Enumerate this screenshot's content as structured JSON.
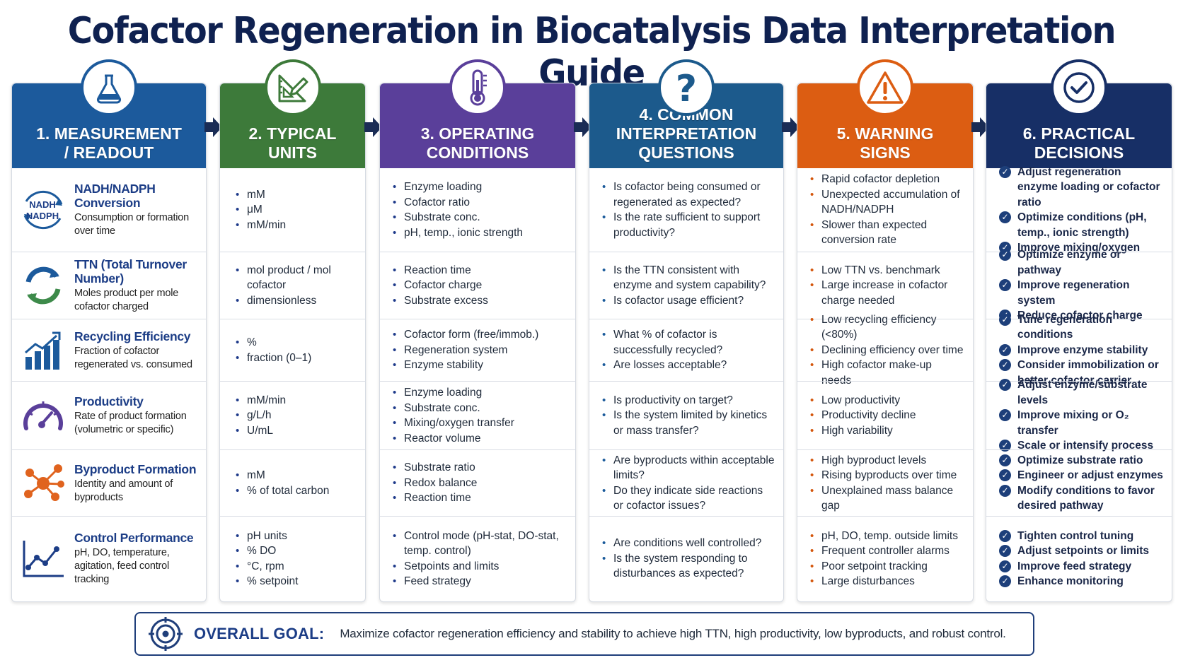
{
  "title": "Cofactor Regeneration in Biocatalysis Data Interpretation Guide",
  "colors": {
    "measurement": "#1c5a9c",
    "units": "#3d7a3a",
    "operating": "#5a3f9a",
    "questions": "#1c5a8c",
    "warning": "#dc5d12",
    "decisions": "#172f66"
  },
  "columns": [
    {
      "key": "measurement",
      "header": "1. MEASUREMENT\n/ READOUT",
      "icon": "flask-icon",
      "rows": [
        {
          "title": "NADH/NADPH Conversion",
          "desc": "Consumption or formation over time",
          "icon": "nadh-cycle-icon",
          "icon_text": "NADH\nNADPH"
        },
        {
          "title": "TTN (Total Turnover Number)",
          "desc": "Moles product per mole cofactor charged",
          "icon": "recycle-arrows-icon"
        },
        {
          "title": "Recycling Efficiency",
          "desc": "Fraction of cofactor regenerated vs. consumed",
          "icon": "bar-growth-icon"
        },
        {
          "title": "Productivity",
          "desc": "Rate of product formation (volumetric or specific)",
          "icon": "gauge-icon"
        },
        {
          "title": "Byproduct Formation",
          "desc": "Identity and amount of byproducts",
          "icon": "molecule-icon"
        },
        {
          "title": "Control Performance",
          "desc": "pH, DO, temperature, agitation, feed control tracking",
          "icon": "line-chart-icon"
        }
      ]
    },
    {
      "key": "units",
      "header": "2. TYPICAL\nUNITS",
      "icon": "ruler-pencil-icon",
      "rows": [
        [
          "mM",
          "μM",
          "mM/min"
        ],
        [
          "mol product / mol cofactor",
          "dimensionless"
        ],
        [
          "%",
          "fraction (0–1)"
        ],
        [
          "mM/min",
          "g/L/h",
          "U/mL"
        ],
        [
          "mM",
          "% of total carbon"
        ],
        [
          "pH units",
          "% DO",
          "°C, rpm",
          "% setpoint"
        ]
      ]
    },
    {
      "key": "operating",
      "header": "3. OPERATING\nCONDITIONS",
      "icon": "thermometer-icon",
      "rows": [
        [
          "Enzyme loading",
          "Cofactor ratio",
          "Substrate conc.",
          "pH, temp., ionic strength"
        ],
        [
          "Reaction time",
          "Cofactor charge",
          "Substrate excess"
        ],
        [
          "Cofactor form (free/immob.)",
          "Regeneration system",
          "Enzyme stability"
        ],
        [
          "Enzyme loading",
          "Substrate conc.",
          "Mixing/oxygen transfer",
          "Reactor volume"
        ],
        [
          "Substrate ratio",
          "Redox balance",
          "Reaction time"
        ],
        [
          "Control mode (pH-stat, DO-stat, temp. control)",
          "Setpoints and limits",
          "Feed strategy"
        ]
      ]
    },
    {
      "key": "questions",
      "header": "4. COMMON\nINTERPRETATION\nQUESTIONS",
      "icon": "question-mark-icon",
      "rows": [
        [
          "Is cofactor being consumed or regenerated as expected?",
          "Is the rate sufficient to support productivity?"
        ],
        [
          "Is the TTN consistent with enzyme and system capability?",
          "Is cofactor usage efficient?"
        ],
        [
          "What % of cofactor is successfully recycled?",
          "Are losses acceptable?"
        ],
        [
          "Is productivity on target?",
          "Is the system limited by kinetics or mass transfer?"
        ],
        [
          "Are byproducts within acceptable limits?",
          "Do they indicate side reactions or cofactor issues?"
        ],
        [
          "Are conditions well controlled?",
          "Is the system responding to disturbances as expected?"
        ]
      ]
    },
    {
      "key": "warning",
      "header": "5. WARNING\nSIGNS",
      "icon": "warning-triangle-icon",
      "rows": [
        [
          "Rapid cofactor depletion",
          "Unexpected accumulation of NADH/NADPH",
          "Slower than expected conversion rate"
        ],
        [
          "Low TTN vs. benchmark",
          "Large increase in cofactor charge needed"
        ],
        [
          "Low recycling efficiency (<80%)",
          "Declining efficiency over time",
          "High cofactor make-up needs"
        ],
        [
          "Low productivity",
          "Productivity decline",
          "High variability"
        ],
        [
          "High byproduct levels",
          "Rising byproducts over time",
          "Unexplained mass balance gap"
        ],
        [
          "pH, DO, temp. outside limits",
          "Frequent controller alarms",
          "Poor setpoint tracking",
          "Large disturbances"
        ]
      ]
    },
    {
      "key": "decisions",
      "header": "6. PRACTICAL\nDECISIONS",
      "icon": "check-circle-icon",
      "rows": [
        [
          "Adjust regeneration enzyme loading or cofactor ratio",
          "Optimize conditions (pH, temp., ionic strength)",
          "Improve mixing/oxygen"
        ],
        [
          "Optimize enzyme or pathway",
          "Improve regeneration system",
          "Reduce cofactor charge"
        ],
        [
          "Tune regeneration conditions",
          "Improve enzyme stability",
          "Consider immobilization or better cofactor carrier"
        ],
        [
          "Adjust enzyme/substrate levels",
          "Improve mixing or O₂ transfer",
          "Scale or intensify process"
        ],
        [
          "Optimize substrate ratio",
          "Engineer or adjust enzymes",
          "Modify conditions to favor desired pathway"
        ],
        [
          "Tighten control tuning",
          "Adjust setpoints or limits",
          "Improve feed strategy",
          "Enhance monitoring"
        ]
      ]
    }
  ],
  "goal": {
    "label": "OVERALL GOAL:",
    "text": "Maximize cofactor regeneration efficiency and stability to achieve high TTN, high productivity, low byproducts, and robust control.",
    "icon": "target-icon"
  }
}
